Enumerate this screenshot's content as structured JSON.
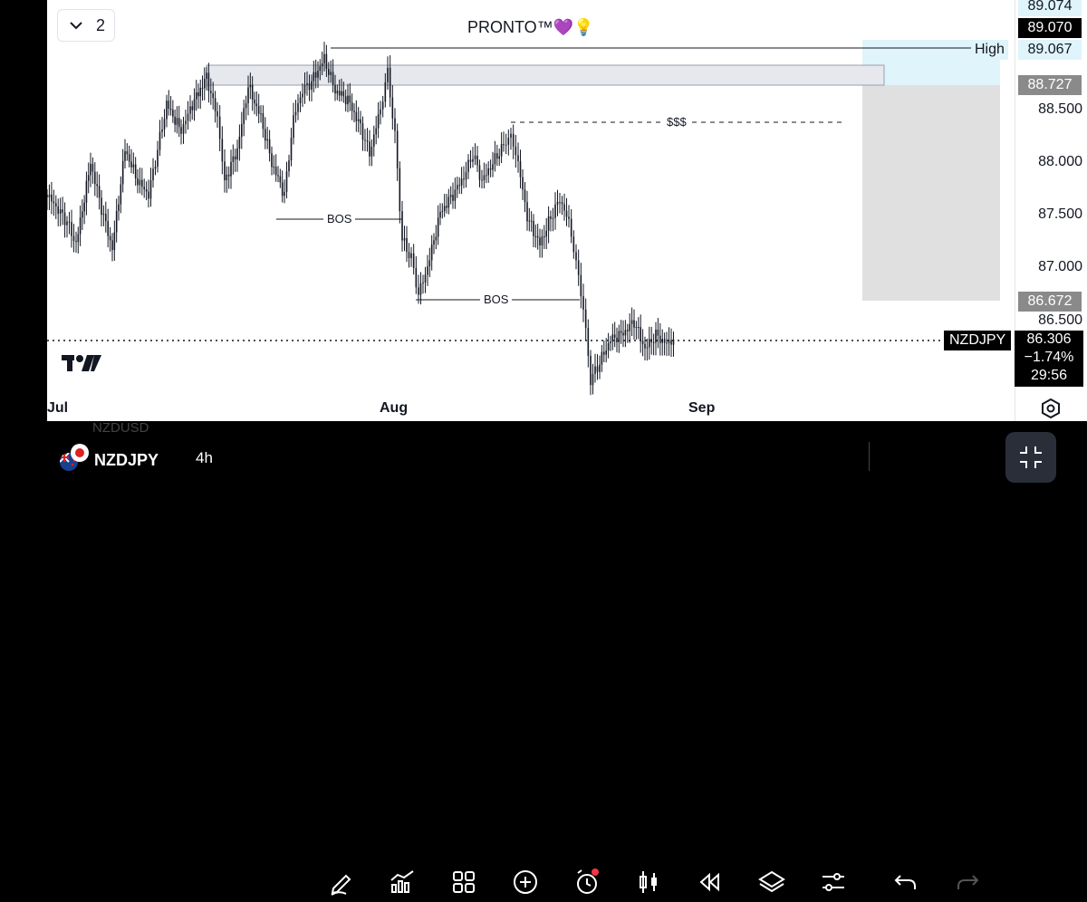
{
  "window_selector": {
    "count": "2"
  },
  "indicator": {
    "name": "PRONTO™💜💡"
  },
  "annotations": {
    "bos_1": "BOS",
    "bos_2": "BOS",
    "liquidity": "$$$",
    "high_tag": "High"
  },
  "price_scale": {
    "labels": [
      "89.074",
      "88.500",
      "88.000",
      "87.500",
      "87.000",
      "86.500"
    ],
    "badges": {
      "top": "89.070",
      "high": "89.067",
      "zone_top": "88.727",
      "zone_bottom": "86.672",
      "current_price": "86.306",
      "change": "−1.74%",
      "countdown": "29:56"
    }
  },
  "symbol_tag": "NZDJPY",
  "time_axis": {
    "labels": [
      "Jul",
      "Aug",
      "Sep"
    ]
  },
  "toolbar": {
    "symbol": "NZDJPY",
    "interval": "4h",
    "ghost_symbol_above": "NZDUSD",
    "icons": [
      "pencil-icon",
      "chart-indicator-icon",
      "grid-layout-icon",
      "add-icon",
      "alarm-icon",
      "candles-icon",
      "replay-icon",
      "layers-icon",
      "settings-sliders-icon",
      "undo-icon",
      "redo-icon",
      "fullscreen-exit-icon"
    ]
  },
  "colors": {
    "background": "#ffffff",
    "candle": "#131722",
    "high_zone": "#dff4fb",
    "range_zone": "#e0e0e0",
    "alert_dot": "#f23645"
  }
}
